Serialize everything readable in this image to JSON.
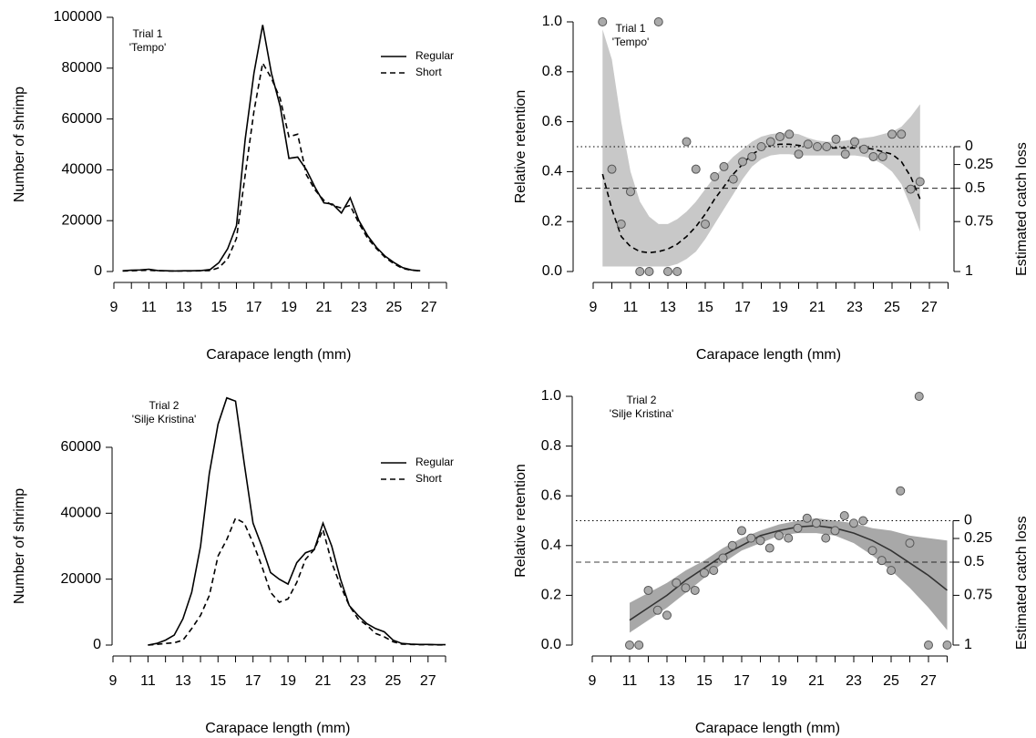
{
  "chart_data": [
    {
      "type": "line",
      "xlabel": "Carapace length (mm)",
      "ylabel": "Number of shrimp",
      "annotation": [
        "Trial 1",
        "'Tempo'"
      ],
      "x": [
        9.5,
        10,
        10.5,
        11,
        11.5,
        12,
        12.5,
        13,
        13.5,
        14,
        14.5,
        15,
        15.5,
        16,
        16.5,
        17,
        17.5,
        18,
        18.5,
        19,
        19.5,
        20,
        20.5,
        21,
        21.5,
        22,
        22.5,
        23,
        23.5,
        24,
        24.5,
        25,
        25.5,
        26,
        26.5
      ],
      "series": [
        {
          "name": "Regular",
          "style": "solid",
          "color": "#000000",
          "values": [
            300,
            500,
            600,
            900,
            400,
            300,
            200,
            300,
            300,
            400,
            800,
            3500,
            9000,
            18000,
            52000,
            78000,
            97000,
            78000,
            65000,
            44500,
            45000,
            40000,
            33000,
            27000,
            26500,
            23000,
            29000,
            20000,
            14000,
            9500,
            6000,
            3500,
            1500,
            600,
            300
          ]
        },
        {
          "name": "Short",
          "style": "dashed",
          "color": "#000000",
          "values": [
            200,
            300,
            400,
            500,
            300,
            200,
            200,
            200,
            200,
            300,
            400,
            1500,
            5000,
            13000,
            38000,
            63000,
            82000,
            76000,
            68000,
            53000,
            54000,
            38000,
            32000,
            28000,
            26000,
            25000,
            26000,
            19000,
            13000,
            9000,
            5500,
            3000,
            1200,
            500,
            200
          ]
        }
      ],
      "xlim": [
        9,
        28
      ],
      "xticks": [
        9,
        11,
        13,
        15,
        17,
        19,
        21,
        23,
        25,
        27
      ],
      "xminorticks": [
        10,
        12,
        14,
        16,
        18,
        20,
        22,
        24,
        26,
        28
      ],
      "ylim": [
        0,
        100000
      ],
      "yticks": [
        0,
        20000,
        40000,
        60000,
        80000,
        100000
      ],
      "legend": "upper right"
    },
    {
      "type": "scatter",
      "xlabel": "Carapace length (mm)",
      "ylabel": "Relative retention",
      "y2label": "Estimated catch loss",
      "annotation": [
        "Trial 1",
        "'Tempo'"
      ],
      "x": [
        9.5,
        10,
        10.5,
        11,
        11.5,
        12,
        12.5,
        13,
        13.5,
        14,
        14.5,
        15,
        15.5,
        16,
        16.5,
        17,
        17.5,
        18,
        18.5,
        19,
        19.5,
        20,
        20.5,
        21,
        21.5,
        22,
        22.5,
        23,
        23.5,
        24,
        24.5,
        25,
        25.5,
        26,
        26.5
      ],
      "values": [
        1.0,
        0.41,
        0.19,
        0.32,
        0,
        0,
        1.0,
        0,
        0,
        0.52,
        0.41,
        0.19,
        0.38,
        0.42,
        0.37,
        0.44,
        0.46,
        0.5,
        0.52,
        0.54,
        0.55,
        0.47,
        0.51,
        0.5,
        0.5,
        0.53,
        0.47,
        0.52,
        0.49,
        0.46,
        0.46,
        0.55,
        0.55,
        0.33,
        0.36
      ],
      "color": "#aaaaaa",
      "fit": {
        "style": "dashed",
        "band_color": "#c8c8c8",
        "x": [
          9.5,
          10,
          10.5,
          11,
          11.5,
          12,
          12.5,
          13,
          13.5,
          14,
          14.5,
          15,
          15.5,
          16,
          16.5,
          17,
          17.5,
          18,
          18.5,
          19,
          19.5,
          20,
          20.5,
          21,
          21.5,
          22,
          22.5,
          23,
          23.5,
          24,
          24.5,
          25,
          25.5,
          26,
          26.5
        ],
        "values": [
          0.39,
          0.25,
          0.14,
          0.1,
          0.08,
          0.075,
          0.08,
          0.09,
          0.11,
          0.14,
          0.18,
          0.23,
          0.29,
          0.34,
          0.39,
          0.43,
          0.47,
          0.49,
          0.505,
          0.51,
          0.51,
          0.505,
          0.5,
          0.495,
          0.495,
          0.495,
          0.495,
          0.495,
          0.495,
          0.49,
          0.48,
          0.47,
          0.44,
          0.38,
          0.29
        ],
        "upper": [
          0.97,
          0.85,
          0.6,
          0.4,
          0.28,
          0.22,
          0.19,
          0.19,
          0.21,
          0.24,
          0.28,
          0.33,
          0.38,
          0.42,
          0.46,
          0.49,
          0.52,
          0.54,
          0.55,
          0.555,
          0.555,
          0.55,
          0.535,
          0.525,
          0.52,
          0.52,
          0.525,
          0.53,
          0.535,
          0.54,
          0.55,
          0.56,
          0.58,
          0.62,
          0.67
        ],
        "lower": [
          0.02,
          0.02,
          0.02,
          0.02,
          0.02,
          0.02,
          0.02,
          0.02,
          0.03,
          0.05,
          0.08,
          0.13,
          0.19,
          0.25,
          0.31,
          0.37,
          0.42,
          0.45,
          0.465,
          0.47,
          0.47,
          0.465,
          0.465,
          0.465,
          0.465,
          0.465,
          0.465,
          0.465,
          0.46,
          0.45,
          0.43,
          0.4,
          0.35,
          0.26,
          0.16
        ]
      },
      "refs": [
        {
          "value": 0.5,
          "style": "dotted"
        },
        {
          "value": 0.3333,
          "style": "dashed"
        }
      ],
      "xlim": [
        9,
        28
      ],
      "xticks": [
        9,
        11,
        13,
        15,
        17,
        19,
        21,
        23,
        25,
        27
      ],
      "xminorticks": [
        10,
        12,
        14,
        16,
        18,
        20,
        22,
        24,
        26,
        28
      ],
      "ylim": [
        0,
        1
      ],
      "yticks": [
        {
          "value": 0,
          "label": "0.0"
        },
        0.2,
        0.4,
        0.6,
        0.8,
        {
          "value": 1,
          "label": "1.0"
        }
      ],
      "y2scale": "catch-loss",
      "y2ticks": [
        0,
        0.25,
        0.5,
        0.75,
        1
      ]
    },
    {
      "type": "line",
      "xlabel": "Carapace length (mm)",
      "ylabel": "Number of shrimp",
      "annotation": [
        "Trial 2",
        "'Silje Kristina'"
      ],
      "x": [
        11,
        11.5,
        12,
        12.5,
        13,
        13.5,
        14,
        14.5,
        15,
        15.5,
        16,
        16.5,
        17,
        17.5,
        18,
        18.5,
        19,
        19.5,
        20,
        20.5,
        21,
        21.5,
        22,
        22.5,
        23,
        23.5,
        24,
        24.5,
        25,
        25.5,
        26,
        26.5,
        27,
        27.5,
        28
      ],
      "series": [
        {
          "name": "Regular",
          "style": "solid",
          "color": "#000000",
          "values": [
            0,
            500,
            1500,
            3000,
            8000,
            16000,
            30000,
            52000,
            67000,
            75000,
            74000,
            55000,
            37000,
            30000,
            22000,
            20000,
            18500,
            25000,
            28000,
            29000,
            37000,
            30000,
            20000,
            12000,
            9000,
            6500,
            5000,
            4000,
            1500,
            500,
            300,
            200,
            200,
            100,
            100
          ]
        },
        {
          "name": "Short",
          "style": "dashed",
          "color": "#000000",
          "values": [
            0,
            200,
            500,
            700,
            1500,
            5000,
            9000,
            15000,
            27000,
            32000,
            38500,
            37000,
            31000,
            24000,
            16000,
            13000,
            14000,
            19000,
            26000,
            29000,
            35000,
            25000,
            18000,
            12000,
            8000,
            6000,
            3500,
            2500,
            1000,
            300,
            200,
            100,
            100,
            50,
            50
          ]
        }
      ],
      "xlim": [
        9,
        28
      ],
      "xticks": [
        9,
        11,
        13,
        15,
        17,
        19,
        21,
        23,
        25,
        27
      ],
      "xminorticks": [
        10,
        12,
        14,
        16,
        18,
        20,
        22,
        24,
        26,
        28
      ],
      "ylim": [
        0,
        75000
      ],
      "yticks": [
        0,
        20000,
        40000,
        60000
      ],
      "legend": "upper right"
    },
    {
      "type": "scatter",
      "xlabel": "Carapace length (mm)",
      "ylabel": "Relative retention",
      "y2label": "Estimated catch loss",
      "annotation": [
        "Trial 2",
        "'Silje Kristina'"
      ],
      "x": [
        11,
        11.5,
        12,
        12.5,
        13,
        13.5,
        14,
        14.5,
        15,
        15.5,
        16,
        16.5,
        17,
        17.5,
        18,
        18.5,
        19,
        19.5,
        20,
        20.5,
        21,
        21.5,
        22,
        22.5,
        23,
        23.5,
        24,
        24.5,
        25,
        25.5,
        26,
        26.5,
        27,
        28
      ],
      "values": [
        0,
        0,
        0.22,
        0.14,
        0.12,
        0.25,
        0.23,
        0.22,
        0.29,
        0.3,
        0.35,
        0.4,
        0.46,
        0.43,
        0.42,
        0.39,
        0.44,
        0.43,
        0.47,
        0.51,
        0.49,
        0.43,
        0.46,
        0.52,
        0.49,
        0.5,
        0.38,
        0.34,
        0.3,
        0.62,
        0.41,
        1.0,
        0,
        0
      ],
      "color": "#aaaaaa",
      "fit": {
        "style": "solid",
        "band_color": "#a8a8a8",
        "x": [
          11,
          12,
          13,
          14,
          15,
          16,
          17,
          18,
          19,
          20,
          21,
          22,
          23,
          24,
          25,
          26,
          27,
          28
        ],
        "values": [
          0.1,
          0.15,
          0.2,
          0.26,
          0.31,
          0.36,
          0.4,
          0.44,
          0.46,
          0.475,
          0.48,
          0.47,
          0.45,
          0.42,
          0.38,
          0.33,
          0.28,
          0.22
        ],
        "upper": [
          0.17,
          0.21,
          0.25,
          0.3,
          0.34,
          0.39,
          0.43,
          0.46,
          0.485,
          0.5,
          0.51,
          0.5,
          0.49,
          0.47,
          0.46,
          0.44,
          0.43,
          0.42
        ],
        "lower": [
          0.05,
          0.1,
          0.15,
          0.21,
          0.27,
          0.33,
          0.38,
          0.41,
          0.44,
          0.45,
          0.45,
          0.44,
          0.41,
          0.36,
          0.3,
          0.23,
          0.15,
          0.06
        ]
      },
      "refs": [
        {
          "value": 0.5,
          "style": "dotted"
        },
        {
          "value": 0.3333,
          "style": "dashed"
        }
      ],
      "xlim": [
        9,
        28
      ],
      "xticks": [
        9,
        11,
        13,
        15,
        17,
        19,
        21,
        23,
        25,
        27
      ],
      "xminorticks": [
        10,
        12,
        14,
        16,
        18,
        20,
        22,
        24,
        26,
        28
      ],
      "ylim": [
        0,
        1
      ],
      "yticks": [
        {
          "value": 0,
          "label": "0.0"
        },
        0.2,
        0.4,
        0.6,
        0.8,
        {
          "value": 1,
          "label": "1.0"
        }
      ],
      "y2scale": "catch-loss",
      "y2ticks": [
        0,
        0.25,
        0.5,
        0.75,
        1
      ]
    }
  ]
}
